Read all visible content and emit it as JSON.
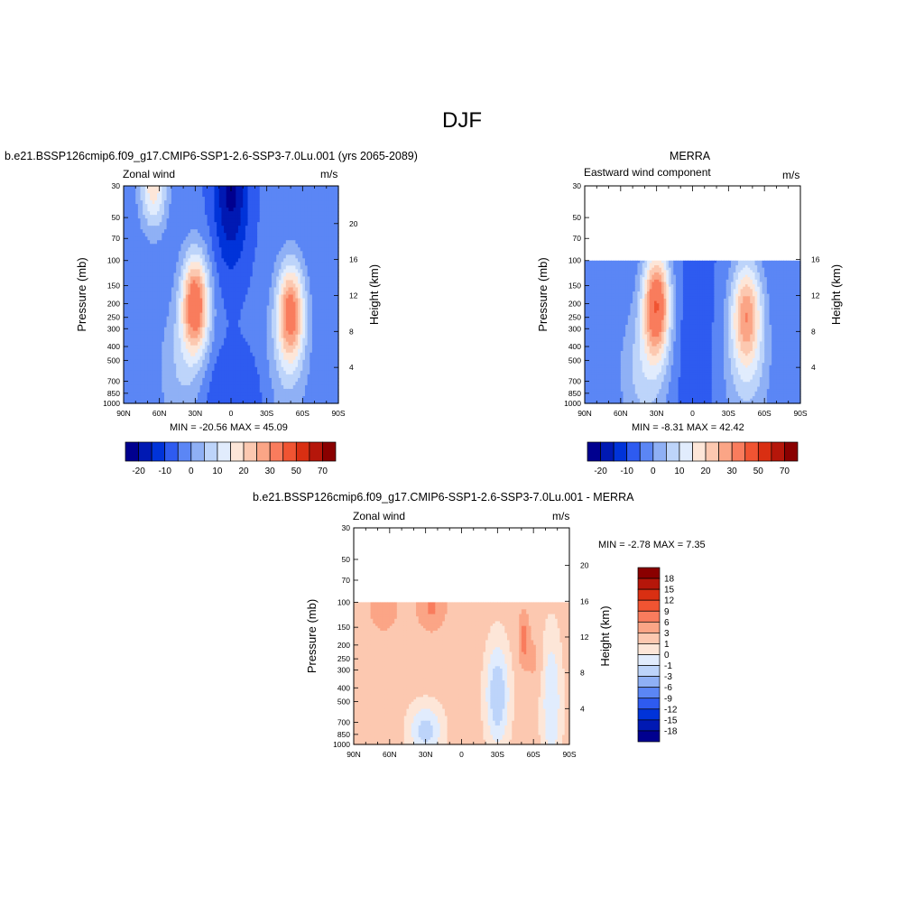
{
  "figure": {
    "title": "DJF"
  },
  "colors": {
    "levels": [
      "#00008f",
      "#0019b3",
      "#0033d9",
      "#2e5bf0",
      "#5b86f5",
      "#8fb0f5",
      "#bdd4fa",
      "#e1ecfd",
      "#fde6d8",
      "#fcc8b0",
      "#fba586",
      "#f97c5d",
      "#f05432",
      "#d92f12",
      "#b5160a",
      "#8a0000"
    ],
    "diff_levels": [
      "#00008f",
      "#0019b3",
      "#0033d9",
      "#2e5bf0",
      "#5b86f5",
      "#8fb0f5",
      "#bdd4fa",
      "#e1ecfd",
      "#fde6d8",
      "#fcc8b0",
      "#fba586",
      "#f97c5d",
      "#f05432",
      "#d92f12",
      "#b5160a",
      "#8a0000"
    ]
  },
  "chart_data": [
    {
      "type": "heatmap",
      "title": "b.e21.BSSP126cmip6.f09_g17.CMIP6-SSP1-2.6-SSP3-7.0Lu.001 (yrs 2065-2089)",
      "left_label": "Zonal wind",
      "units": "m/s",
      "ylabel": "Pressure (mb)",
      "ylabel_right": "Height (km)",
      "x_ticks": [
        "90N",
        "60N",
        "30N",
        "0",
        "30S",
        "60S",
        "90S"
      ],
      "y_ticks": [
        "30",
        "50",
        "70",
        "100",
        "150",
        "200",
        "250",
        "300",
        "400",
        "500",
        "700",
        "850",
        "1000"
      ],
      "y2_ticks": [
        "20",
        "16",
        "12",
        "8",
        "4"
      ],
      "min_max": "MIN = -20.56  MAX =  45.09",
      "min": -20.56,
      "max": 45.09,
      "top_pressure": 30,
      "colorbar_labels": [
        "-20",
        "-10",
        "0",
        "10",
        "20",
        "30",
        "50",
        "70"
      ]
    },
    {
      "type": "heatmap",
      "title": "MERRA",
      "left_label": "Eastward wind component",
      "units": "m/s",
      "ylabel": "Pressure (mb)",
      "ylabel_right": "Height (km)",
      "x_ticks": [
        "90N",
        "60N",
        "30N",
        "0",
        "30S",
        "60S",
        "90S"
      ],
      "y_ticks": [
        "30",
        "50",
        "70",
        "100",
        "150",
        "200",
        "250",
        "300",
        "400",
        "500",
        "700",
        "850",
        "1000"
      ],
      "y2_ticks": [
        "16",
        "12",
        "8",
        "4"
      ],
      "min_max": "MIN =  -8.31  MAX =  42.42",
      "min": -8.31,
      "max": 42.42,
      "top_pressure": 100,
      "colorbar_labels": [
        "-20",
        "-10",
        "0",
        "10",
        "20",
        "30",
        "50",
        "70"
      ]
    },
    {
      "type": "heatmap",
      "title": "b.e21.BSSP126cmip6.f09_g17.CMIP6-SSP1-2.6-SSP3-7.0Lu.001 - MERRA",
      "left_label": "Zonal wind",
      "units": "m/s",
      "ylabel": "Pressure (mb)",
      "ylabel_right": "Height (km)",
      "x_ticks": [
        "90N",
        "60N",
        "30N",
        "0",
        "30S",
        "60S",
        "90S"
      ],
      "y_ticks": [
        "30",
        "50",
        "70",
        "100",
        "150",
        "200",
        "250",
        "300",
        "400",
        "500",
        "700",
        "850",
        "1000"
      ],
      "y2_ticks": [
        "20",
        "16",
        "12",
        "8",
        "4"
      ],
      "min_max": "MIN =  -2.78  MAX =   7.35",
      "min": -2.78,
      "max": 7.35,
      "top_pressure": 100,
      "colorbar_labels": [
        "18",
        "15",
        "12",
        "9",
        "6",
        "3",
        "1",
        "0",
        "-1",
        "-3",
        "-6",
        "-9",
        "-12",
        "-15",
        "-18"
      ]
    }
  ]
}
